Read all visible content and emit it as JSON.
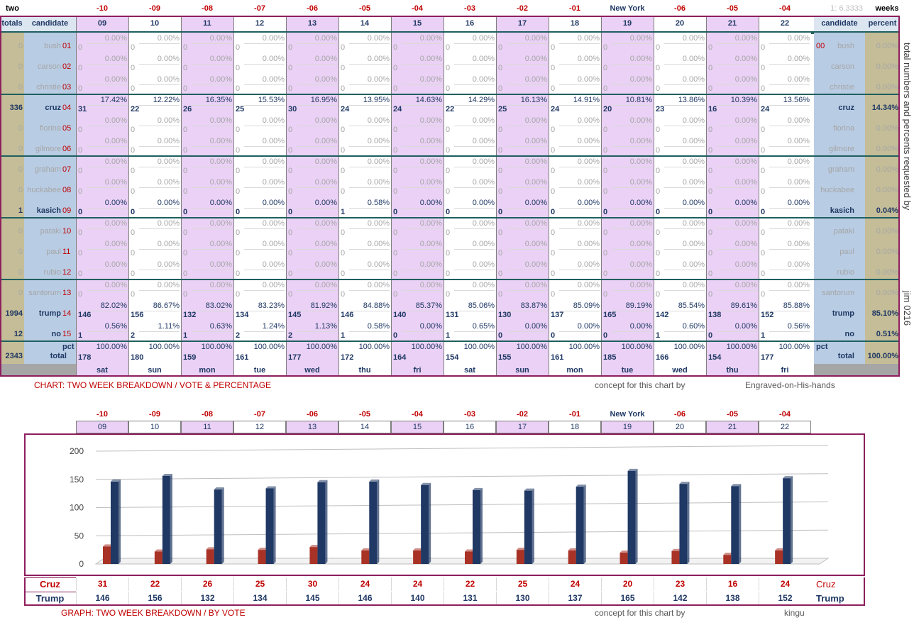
{
  "header": {
    "top_left": "two",
    "top_right": "weeks",
    "ratio_text": "1: 6.3333",
    "day_offsets": [
      "-10",
      "-09",
      "-08",
      "-07",
      "-06",
      "-05",
      "-04",
      "-03",
      "-02",
      "-01",
      "New York",
      "-06",
      "-05",
      "-04"
    ],
    "dates": [
      "09",
      "10",
      "11",
      "12",
      "13",
      "14",
      "15",
      "16",
      "17",
      "18",
      "19",
      "20",
      "21",
      "22"
    ],
    "weekdays": [
      "sat",
      "sun",
      "mon",
      "tue",
      "wed",
      "thu",
      "fri",
      "sat",
      "sun",
      "mon",
      "tue",
      "wed",
      "thu",
      "fri"
    ],
    "totals_label": "totals",
    "candidate_label": "candidate",
    "percent_label": "percent",
    "pct_label": "pct",
    "total_label": "total"
  },
  "table": {
    "candidates": [
      {
        "name": "bush",
        "code": "01",
        "total": "0",
        "percent": "0.00%",
        "active": false,
        "right_code": "00",
        "votes": [
          "0",
          "0",
          "0",
          "0",
          "0",
          "0",
          "0",
          "0",
          "0",
          "0",
          "0",
          "0",
          "0",
          "0"
        ],
        "pcts": [
          "0.00%",
          "0.00%",
          "0.00%",
          "0.00%",
          "0.00%",
          "0.00%",
          "0.00%",
          "0.00%",
          "0.00%",
          "0.00%",
          "0.00%",
          "0.00%",
          "0.00%",
          "0.00%"
        ]
      },
      {
        "name": "carson",
        "code": "02",
        "total": "0",
        "percent": "0.00%",
        "active": false,
        "right_code": "",
        "votes": [
          "0",
          "0",
          "0",
          "0",
          "0",
          "0",
          "0",
          "0",
          "0",
          "0",
          "0",
          "0",
          "0",
          "0"
        ],
        "pcts": [
          "0.00%",
          "0.00%",
          "0.00%",
          "0.00%",
          "0.00%",
          "0.00%",
          "0.00%",
          "0.00%",
          "0.00%",
          "0.00%",
          "0.00%",
          "0.00%",
          "0.00%",
          "0.00%"
        ]
      },
      {
        "name": "christie",
        "code": "03",
        "total": "0",
        "percent": "0.00%",
        "active": false,
        "right_code": "",
        "votes": [
          "0",
          "0",
          "0",
          "0",
          "0",
          "0",
          "0",
          "0",
          "0",
          "0",
          "0",
          "0",
          "0",
          "0"
        ],
        "pcts": [
          "0.00%",
          "0.00%",
          "0.00%",
          "0.00%",
          "0.00%",
          "0.00%",
          "0.00%",
          "0.00%",
          "0.00%",
          "0.00%",
          "0.00%",
          "0.00%",
          "0.00%",
          "0.00%"
        ]
      },
      {
        "name": "cruz",
        "code": "04",
        "total": "336",
        "percent": "14.34%",
        "active": true,
        "right_code": "",
        "votes": [
          "31",
          "22",
          "26",
          "25",
          "30",
          "24",
          "24",
          "22",
          "25",
          "24",
          "20",
          "23",
          "16",
          "24"
        ],
        "pcts": [
          "17.42%",
          "12.22%",
          "16.35%",
          "15.53%",
          "16.95%",
          "13.95%",
          "14.63%",
          "14.29%",
          "16.13%",
          "14.91%",
          "10.81%",
          "13.86%",
          "10.39%",
          "13.56%"
        ]
      },
      {
        "name": "fiorina",
        "code": "05",
        "total": "0",
        "percent": "0.00%",
        "active": false,
        "right_code": "",
        "votes": [
          "0",
          "0",
          "0",
          "0",
          "0",
          "0",
          "0",
          "0",
          "0",
          "0",
          "0",
          "0",
          "0",
          "0"
        ],
        "pcts": [
          "0.00%",
          "0.00%",
          "0.00%",
          "0.00%",
          "0.00%",
          "0.00%",
          "0.00%",
          "0.00%",
          "0.00%",
          "0.00%",
          "0.00%",
          "0.00%",
          "0.00%",
          "0.00%"
        ]
      },
      {
        "name": "gilmore",
        "code": "06",
        "total": "0",
        "percent": "0.00%",
        "active": false,
        "right_code": "",
        "votes": [
          "0",
          "0",
          "0",
          "0",
          "0",
          "0",
          "0",
          "0",
          "0",
          "0",
          "0",
          "0",
          "0",
          "0"
        ],
        "pcts": [
          "0.00%",
          "0.00%",
          "0.00%",
          "0.00%",
          "0.00%",
          "0.00%",
          "0.00%",
          "0.00%",
          "0.00%",
          "0.00%",
          "0.00%",
          "0.00%",
          "0.00%",
          "0.00%"
        ]
      },
      {
        "name": "graham",
        "code": "07",
        "total": "0",
        "percent": "0.00%",
        "active": false,
        "right_code": "",
        "votes": [
          "0",
          "0",
          "0",
          "0",
          "0",
          "0",
          "0",
          "0",
          "0",
          "0",
          "0",
          "0",
          "0",
          "0"
        ],
        "pcts": [
          "0.00%",
          "0.00%",
          "0.00%",
          "0.00%",
          "0.00%",
          "0.00%",
          "0.00%",
          "0.00%",
          "0.00%",
          "0.00%",
          "0.00%",
          "0.00%",
          "0.00%",
          "0.00%"
        ]
      },
      {
        "name": "huckabee",
        "code": "08",
        "total": "0",
        "percent": "0.00%",
        "active": false,
        "right_code": "",
        "votes": [
          "0",
          "0",
          "0",
          "0",
          "0",
          "0",
          "0",
          "0",
          "0",
          "0",
          "0",
          "0",
          "0",
          "0"
        ],
        "pcts": [
          "0.00%",
          "0.00%",
          "0.00%",
          "0.00%",
          "0.00%",
          "0.00%",
          "0.00%",
          "0.00%",
          "0.00%",
          "0.00%",
          "0.00%",
          "0.00%",
          "0.00%",
          "0.00%"
        ]
      },
      {
        "name": "kasich",
        "code": "09",
        "total": "1",
        "percent": "0.04%",
        "active": true,
        "right_code": "",
        "votes": [
          "0",
          "0",
          "0",
          "0",
          "0",
          "1",
          "0",
          "0",
          "0",
          "0",
          "0",
          "0",
          "0",
          "0"
        ],
        "pcts": [
          "0.00%",
          "0.00%",
          "0.00%",
          "0.00%",
          "0.00%",
          "0.58%",
          "0.00%",
          "0.00%",
          "0.00%",
          "0.00%",
          "0.00%",
          "0.00%",
          "0.00%",
          "0.00%"
        ]
      },
      {
        "name": "pataki",
        "code": "10",
        "total": "0",
        "percent": "0.00%",
        "active": false,
        "right_code": "",
        "votes": [
          "0",
          "0",
          "0",
          "0",
          "0",
          "0",
          "0",
          "0",
          "0",
          "0",
          "0",
          "0",
          "0",
          "0"
        ],
        "pcts": [
          "0.00%",
          "0.00%",
          "0.00%",
          "0.00%",
          "0.00%",
          "0.00%",
          "0.00%",
          "0.00%",
          "0.00%",
          "0.00%",
          "0.00%",
          "0.00%",
          "0.00%",
          "0.00%"
        ]
      },
      {
        "name": "paul",
        "code": "11",
        "total": "0",
        "percent": "0.00%",
        "active": false,
        "right_code": "",
        "votes": [
          "0",
          "0",
          "0",
          "0",
          "0",
          "0",
          "0",
          "0",
          "0",
          "0",
          "0",
          "0",
          "0",
          "0"
        ],
        "pcts": [
          "0.00%",
          "0.00%",
          "0.00%",
          "0.00%",
          "0.00%",
          "0.00%",
          "0.00%",
          "0.00%",
          "0.00%",
          "0.00%",
          "0.00%",
          "0.00%",
          "0.00%",
          "0.00%"
        ]
      },
      {
        "name": "rubio",
        "code": "12",
        "total": "0",
        "percent": "0.00%",
        "active": false,
        "right_code": "",
        "votes": [
          "0",
          "0",
          "0",
          "0",
          "0",
          "0",
          "0",
          "0",
          "0",
          "0",
          "0",
          "0",
          "0",
          "0"
        ],
        "pcts": [
          "0.00%",
          "0.00%",
          "0.00%",
          "0.00%",
          "0.00%",
          "0.00%",
          "0.00%",
          "0.00%",
          "0.00%",
          "0.00%",
          "0.00%",
          "0.00%",
          "0.00%",
          "0.00%"
        ]
      },
      {
        "name": "santorum",
        "code": "13",
        "total": "0",
        "percent": "0.00%",
        "active": false,
        "right_code": "",
        "votes": [
          "0",
          "0",
          "0",
          "0",
          "0",
          "0",
          "0",
          "0",
          "0",
          "0",
          "0",
          "0",
          "0",
          "0"
        ],
        "pcts": [
          "0.00%",
          "0.00%",
          "0.00%",
          "0.00%",
          "0.00%",
          "0.00%",
          "0.00%",
          "0.00%",
          "0.00%",
          "0.00%",
          "0.00%",
          "0.00%",
          "0.00%",
          "0.00%"
        ]
      },
      {
        "name": "trump",
        "code": "14",
        "total": "1994",
        "percent": "85.10%",
        "active": true,
        "right_code": "",
        "votes": [
          "146",
          "156",
          "132",
          "134",
          "145",
          "146",
          "140",
          "131",
          "130",
          "137",
          "165",
          "142",
          "138",
          "152"
        ],
        "pcts": [
          "82.02%",
          "86.67%",
          "83.02%",
          "83.23%",
          "81.92%",
          "84.88%",
          "85.37%",
          "85.06%",
          "83.87%",
          "85.09%",
          "89.19%",
          "85.54%",
          "89.61%",
          "85.88%"
        ]
      },
      {
        "name": "no",
        "code": "15",
        "total": "12",
        "percent": "0.51%",
        "active": true,
        "right_code": "",
        "votes": [
          "1",
          "2",
          "1",
          "2",
          "2",
          "1",
          "0",
          "1",
          "0",
          "0",
          "0",
          "1",
          "0",
          "1"
        ],
        "pcts": [
          "0.56%",
          "1.11%",
          "0.63%",
          "1.24%",
          "1.13%",
          "0.58%",
          "0.00%",
          "0.65%",
          "0.00%",
          "0.00%",
          "0.00%",
          "0.60%",
          "0.00%",
          "0.56%"
        ]
      }
    ],
    "totals_row": {
      "total": "2343",
      "percent": "100.00%",
      "votes": [
        "178",
        "180",
        "159",
        "161",
        "177",
        "172",
        "164",
        "154",
        "155",
        "161",
        "185",
        "166",
        "154",
        "177"
      ],
      "pcts": [
        "100.00%",
        "100.00%",
        "100.00%",
        "100.00%",
        "100.00%",
        "100.00%",
        "100.00%",
        "100.00%",
        "100.00%",
        "100.00%",
        "100.00%",
        "100.00%",
        "100.00%",
        "100.00%"
      ]
    }
  },
  "captions": {
    "chart_title": "CHART: TWO WEEK BREAKDOWN / VOTE & PERCENTAGE",
    "concept_text": "concept for this chart by",
    "chart_author": "Engraved-on-His-hands",
    "graph_title": "GRAPH: TWO WEEK BREAKDOWN / BY VOTE",
    "graph_author": "kingu",
    "side_note": "total numbers and percents requested by",
    "side_author": "jim 0216"
  },
  "chart_data": {
    "type": "bar",
    "title": "",
    "xlabel": "",
    "ylabel": "",
    "categories": [
      "09",
      "10",
      "11",
      "12",
      "13",
      "14",
      "15",
      "16",
      "17",
      "18",
      "19",
      "20",
      "21",
      "22"
    ],
    "series": [
      {
        "name": "Cruz",
        "values": [
          31,
          22,
          26,
          25,
          30,
          24,
          24,
          22,
          25,
          24,
          20,
          23,
          16,
          24
        ],
        "color": "#a93226"
      },
      {
        "name": "Trump",
        "values": [
          146,
          156,
          132,
          134,
          145,
          146,
          140,
          131,
          130,
          137,
          165,
          142,
          138,
          152
        ],
        "color": "#1f3864"
      }
    ],
    "ylim": [
      0,
      200
    ],
    "yticks": [
      "0",
      "50",
      "100",
      "150",
      "200"
    ],
    "grid": true,
    "legend": "table-below"
  },
  "colors": {
    "lavender": "#ead1f5",
    "tan": "#c4bd97",
    "blue_grey": "#b8cce4",
    "header_blue": "#dce6f1",
    "frame": "#8e1e5d",
    "teal": "#1f5f5f",
    "cruz": "#a93226",
    "trump": "#1f3864"
  }
}
